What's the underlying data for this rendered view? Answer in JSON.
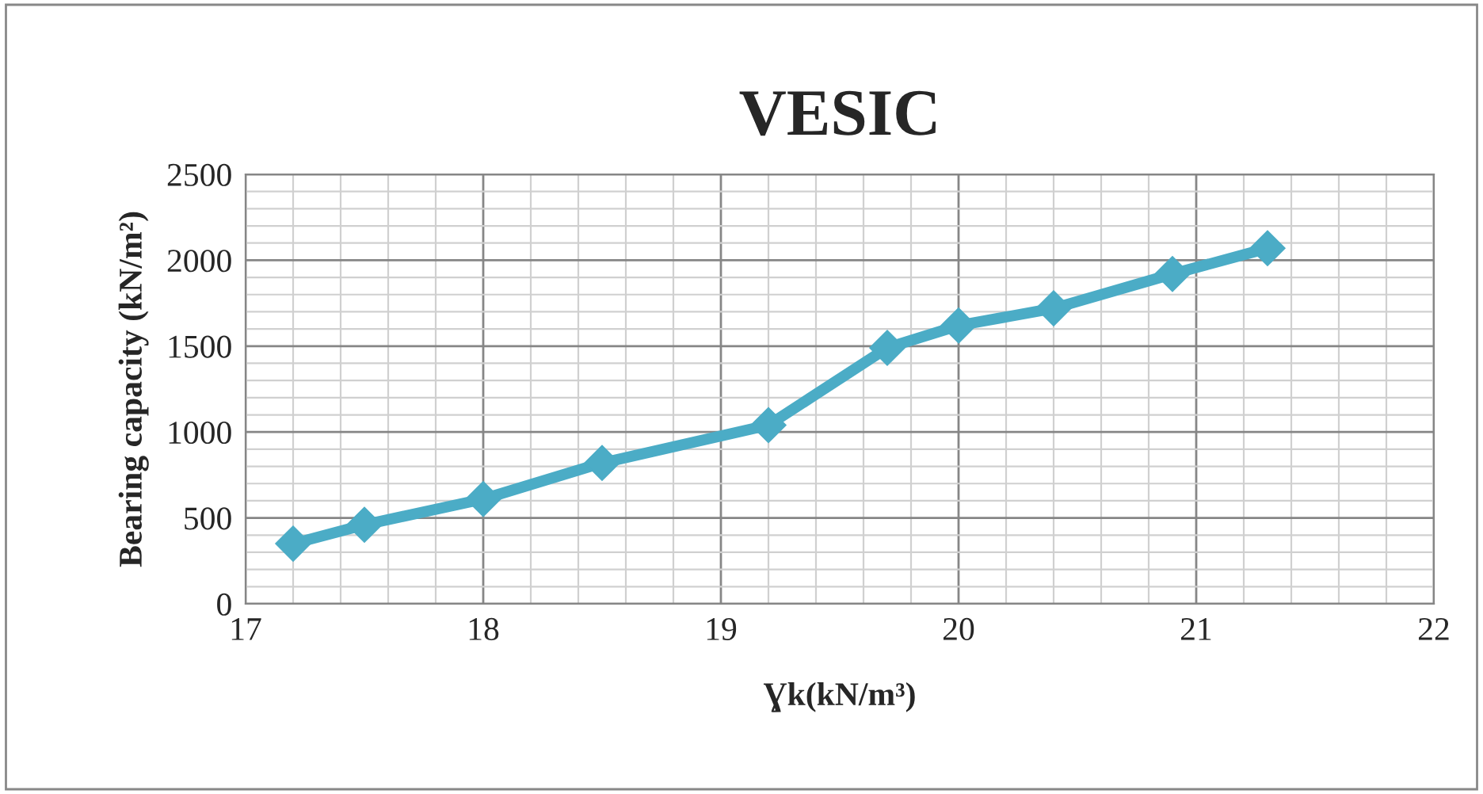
{
  "chart_data": {
    "type": "line",
    "title": "VESIC",
    "xlabel": "Ɣk(kN/m³)",
    "ylabel": "Bearing capacity (kN/m²)",
    "x": [
      17.2,
      17.5,
      18.0,
      18.5,
      19.2,
      19.7,
      20.0,
      20.4,
      20.9,
      21.3
    ],
    "series": [
      {
        "color": "#4bacc6",
        "values": [
          350,
          460,
          610,
          820,
          1040,
          1490,
          1620,
          1720,
          1920,
          2070
        ]
      }
    ],
    "xlim": [
      17,
      22
    ],
    "xticks": [
      17,
      18,
      19,
      20,
      21,
      22
    ],
    "ylim": [
      0,
      2500
    ],
    "yticks": [
      0,
      500,
      1000,
      1500,
      2000,
      2500
    ],
    "grid": true,
    "marker": "diamond",
    "line_style": "solid"
  }
}
